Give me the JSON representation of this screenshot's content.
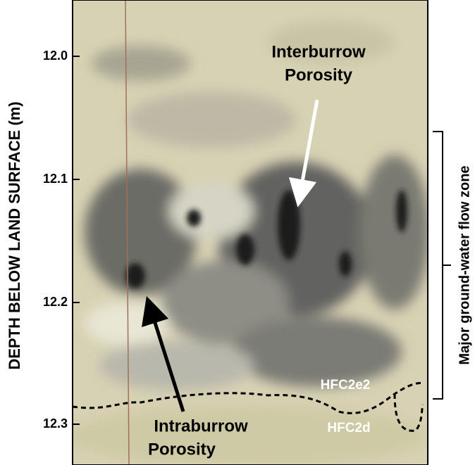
{
  "axis_label": "DEPTH BELOW LAND SURFACE (m)",
  "depth_ticks": [
    "12.0",
    "12.1",
    "12.2",
    "12.3"
  ],
  "annotations": {
    "interburrow": [
      "Interburrow",
      "Porosity"
    ],
    "intraburrow": [
      "Intraburrow",
      "Porosity"
    ]
  },
  "units": {
    "upper": "HFC2e2",
    "lower": "HFC2d"
  },
  "flow_zone": "Major ground-water flow zone"
}
